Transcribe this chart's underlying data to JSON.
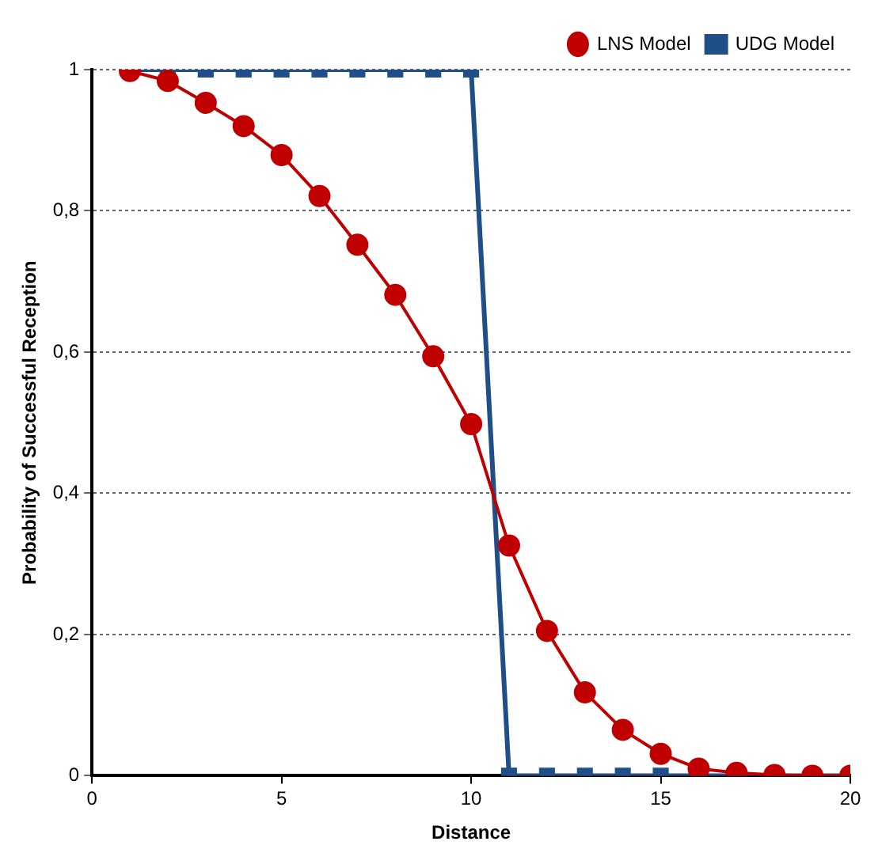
{
  "chart_data": {
    "type": "line",
    "xlabel": "Distance",
    "ylabel": "Probability of Successful Reception",
    "x": [
      1,
      2,
      3,
      4,
      5,
      6,
      7,
      8,
      9,
      10,
      11,
      12,
      13,
      14,
      15,
      16,
      17,
      18,
      19,
      20
    ],
    "series": [
      {
        "name": "UDG Model",
        "color": "#1f4e89",
        "marker": "square",
        "values": [
          1,
          1,
          1,
          1,
          1,
          1,
          1,
          1,
          1,
          1,
          0,
          0,
          0,
          0,
          0,
          0,
          0,
          0,
          0,
          0
        ]
      },
      {
        "name": "LNS Model",
        "color": "#c00000",
        "marker": "circle",
        "values": [
          0.998,
          0.984,
          0.953,
          0.92,
          0.879,
          0.821,
          0.752,
          0.681,
          0.594,
          0.498,
          0.326,
          0.205,
          0.118,
          0.065,
          0.031,
          0.01,
          0.004,
          0.001,
          0,
          0
        ]
      }
    ],
    "xlim": [
      0,
      20
    ],
    "xticks": [
      0,
      5,
      10,
      15,
      20
    ],
    "ylim": [
      0,
      1
    ],
    "yticks": [
      0,
      {
        "value": 0.2,
        "label": "0,2"
      },
      {
        "value": 0.4,
        "label": "0,4"
      },
      {
        "value": 0.6,
        "label": "0,6"
      },
      {
        "value": 0.8,
        "label": "0,8"
      },
      1
    ],
    "grid": "y",
    "legend": "top right",
    "line_style": "solid"
  }
}
